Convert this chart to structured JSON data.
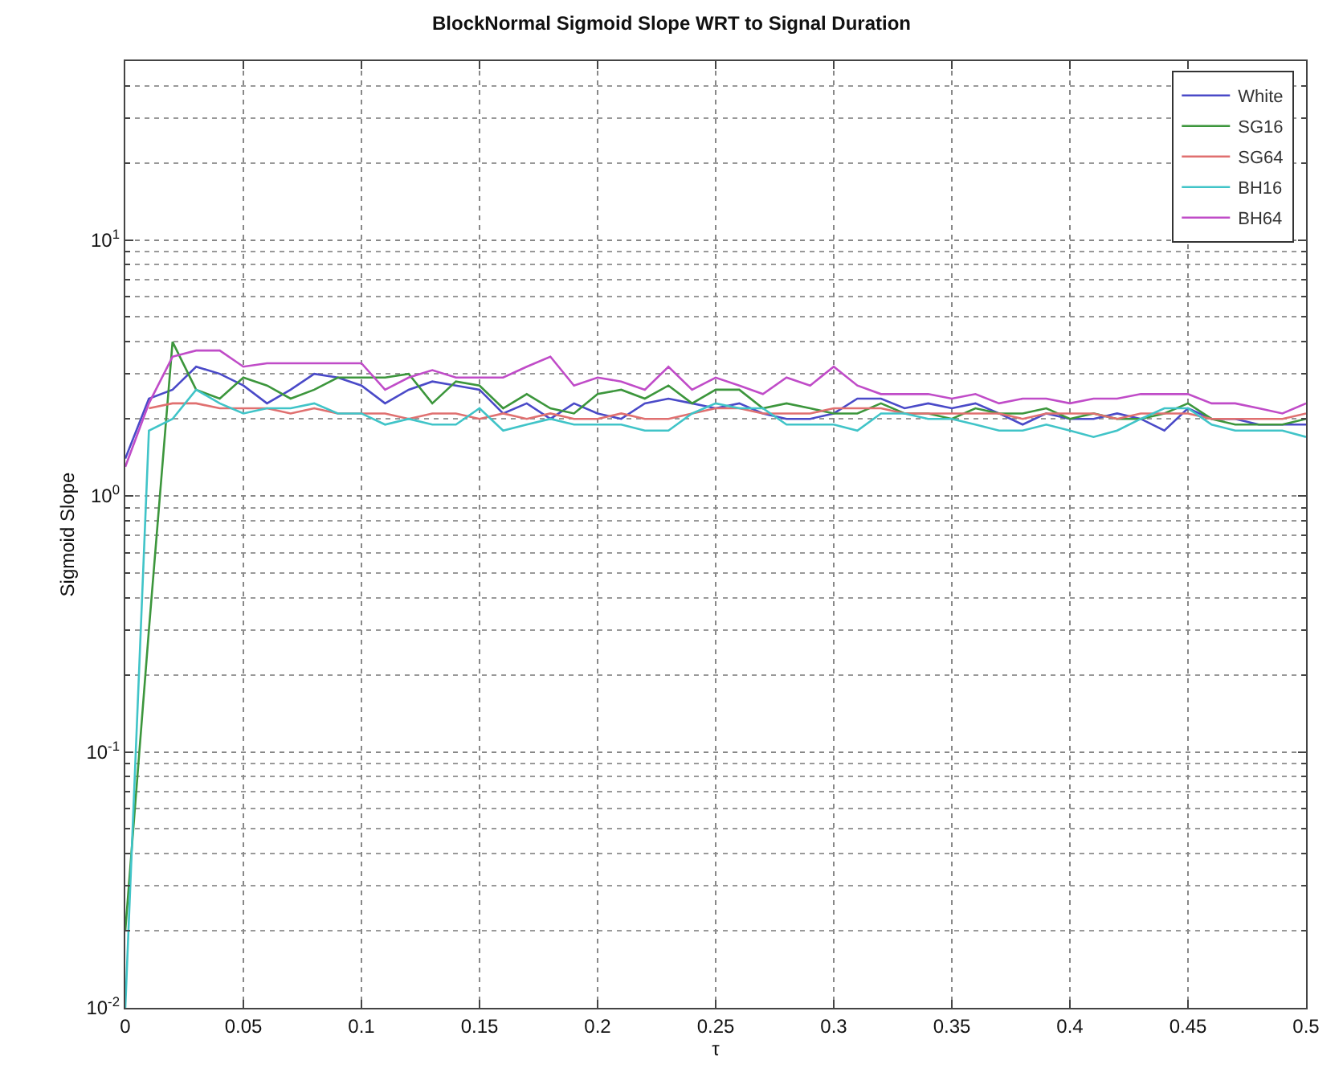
{
  "chart_data": {
    "type": "line",
    "title": "BlockNormal Sigmoid Slope WRT to Signal Duration",
    "xlabel": "τ",
    "ylabel": "Sigmoid Slope",
    "log": "y",
    "grid": true,
    "legend": "top right",
    "xlim": [
      0,
      0.5
    ],
    "ylim": [
      0.01,
      50
    ],
    "xticks": [
      0,
      0.05,
      0.1,
      0.15,
      0.2,
      0.25,
      0.3,
      0.35,
      0.4,
      0.45,
      0.5
    ],
    "yticks": [
      {
        "value": 0.01,
        "label": "10$^{-2}$"
      },
      {
        "value": 0.1,
        "label": "10$^{-1}$"
      },
      {
        "value": 1,
        "label": "10$^{0}$"
      },
      {
        "value": 10,
        "label": "10$^{1}$"
      }
    ],
    "x": [
      0,
      0.01,
      0.02,
      0.03,
      0.04,
      0.05,
      0.06,
      0.07,
      0.08,
      0.09,
      0.1,
      0.11,
      0.12,
      0.13,
      0.14,
      0.15,
      0.16,
      0.17,
      0.18,
      0.19,
      0.2,
      0.21,
      0.22,
      0.23,
      0.24,
      0.25,
      0.26,
      0.27,
      0.28,
      0.29,
      0.3,
      0.31,
      0.32,
      0.33,
      0.34,
      0.35,
      0.36,
      0.37,
      0.38,
      0.39,
      0.4,
      0.41,
      0.42,
      0.43,
      0.44,
      0.45,
      0.46,
      0.47,
      0.48,
      0.49,
      0.5
    ],
    "series": [
      {
        "name": "White",
        "color": "#4a4ac8",
        "values": [
          1.4,
          2.4,
          2.6,
          3.2,
          3.0,
          2.7,
          2.3,
          2.6,
          3.0,
          2.9,
          2.7,
          2.3,
          2.6,
          2.8,
          2.7,
          2.6,
          2.1,
          2.3,
          2.0,
          2.3,
          2.1,
          2.0,
          2.3,
          2.4,
          2.3,
          2.2,
          2.3,
          2.1,
          2.0,
          2.0,
          2.1,
          2.4,
          2.4,
          2.2,
          2.3,
          2.2,
          2.3,
          2.1,
          1.9,
          2.1,
          2.0,
          2.0,
          2.1,
          2.0,
          1.8,
          2.2,
          2.0,
          2.0,
          1.9,
          1.9,
          1.9
        ]
      },
      {
        "name": "SG16",
        "color": "#3c963c",
        "values": [
          0.02,
          0.3,
          4.0,
          2.6,
          2.4,
          2.9,
          2.7,
          2.4,
          2.6,
          2.9,
          2.9,
          2.9,
          3.0,
          2.3,
          2.8,
          2.7,
          2.2,
          2.5,
          2.2,
          2.1,
          2.5,
          2.6,
          2.4,
          2.7,
          2.3,
          2.6,
          2.6,
          2.2,
          2.3,
          2.2,
          2.1,
          2.1,
          2.3,
          2.1,
          2.1,
          2.0,
          2.2,
          2.1,
          2.1,
          2.2,
          2.0,
          2.1,
          2.0,
          2.0,
          2.1,
          2.3,
          2.0,
          1.9,
          1.9,
          1.9,
          2.0
        ]
      },
      {
        "name": "SG64",
        "color": "#e07070",
        "values": [
          null,
          2.2,
          2.3,
          2.3,
          2.2,
          2.2,
          2.2,
          2.1,
          2.2,
          2.1,
          2.1,
          2.1,
          2.0,
          2.1,
          2.1,
          2.0,
          2.1,
          2.0,
          2.1,
          2.0,
          2.0,
          2.1,
          2.0,
          2.0,
          2.1,
          2.2,
          2.2,
          2.1,
          2.1,
          2.1,
          2.2,
          2.2,
          2.2,
          2.1,
          2.1,
          2.1,
          2.1,
          2.1,
          2.0,
          2.1,
          2.1,
          2.1,
          2.0,
          2.1,
          2.1,
          2.1,
          2.0,
          2.0,
          2.0,
          2.0,
          2.1
        ]
      },
      {
        "name": "BH16",
        "color": "#40c4c8",
        "values": [
          0.01,
          1.8,
          2.0,
          2.6,
          2.3,
          2.1,
          2.2,
          2.2,
          2.3,
          2.1,
          2.1,
          1.9,
          2.0,
          1.9,
          1.9,
          2.2,
          1.8,
          1.9,
          2.0,
          1.9,
          1.9,
          1.9,
          1.8,
          1.8,
          2.1,
          2.3,
          2.2,
          2.2,
          1.9,
          1.9,
          1.9,
          1.8,
          2.1,
          2.1,
          2.0,
          2.0,
          1.9,
          1.8,
          1.8,
          1.9,
          1.8,
          1.7,
          1.8,
          2.0,
          2.2,
          2.2,
          1.9,
          1.8,
          1.8,
          1.8,
          1.7
        ]
      },
      {
        "name": "BH64",
        "color": "#c04cc8",
        "values": [
          1.3,
          2.3,
          3.5,
          3.7,
          3.7,
          3.2,
          3.3,
          3.3,
          3.3,
          3.3,
          3.3,
          2.6,
          2.9,
          3.1,
          2.9,
          2.9,
          2.9,
          3.2,
          3.5,
          2.7,
          2.9,
          2.8,
          2.6,
          3.2,
          2.6,
          2.9,
          2.7,
          2.5,
          2.9,
          2.7,
          3.2,
          2.7,
          2.5,
          2.5,
          2.5,
          2.4,
          2.5,
          2.3,
          2.4,
          2.4,
          2.3,
          2.4,
          2.4,
          2.5,
          2.5,
          2.5,
          2.3,
          2.3,
          2.2,
          2.1,
          2.3
        ]
      }
    ]
  }
}
